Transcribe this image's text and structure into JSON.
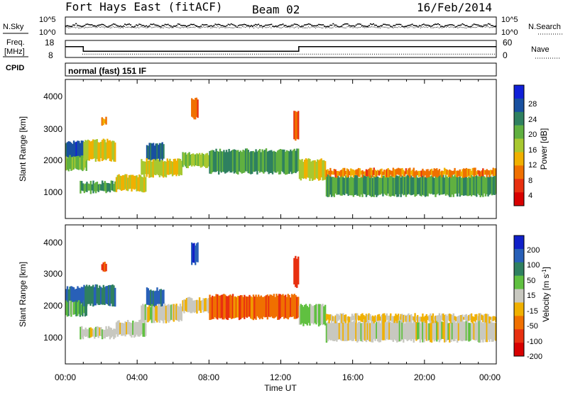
{
  "header": {
    "station": "Fort Hays East (fitACF)",
    "beam": "Beam 02",
    "date": "16/Feb/2014"
  },
  "noise_panel": {
    "left_label": "N.Sky",
    "right_label": "N.Search",
    "left_ticks": [
      "10^5",
      "10^0"
    ],
    "right_ticks": [
      "10^5",
      "10^0"
    ]
  },
  "freq_panel": {
    "left_label_line1": "Freq.",
    "left_label_line2": "[MHz]",
    "right_label": "Nave",
    "left_ticks": [
      "18",
      "8"
    ],
    "right_ticks": [
      "60",
      "0"
    ],
    "freq_segments": [
      {
        "start_h": 0.0,
        "end_h": 1.0,
        "value": 15
      },
      {
        "start_h": 1.0,
        "end_h": 13.0,
        "value": 11
      },
      {
        "start_h": 13.0,
        "end_h": 24.0,
        "value": 15
      }
    ],
    "nave_value": 13
  },
  "cpid": {
    "label": "CPID",
    "mode": "normal (fast) 151 IF"
  },
  "power_panel": {
    "ylabel": "Slant Range [km]",
    "yticks": [
      "4000",
      "3000",
      "2000",
      "1000"
    ],
    "colorbar_label": "Power [dB]",
    "colorbar_ticks": [
      "28",
      "24",
      "20",
      "16",
      "12",
      "8",
      "4"
    ],
    "colors": [
      "#1020d8",
      "#1850a0",
      "#2f8060",
      "#60b040",
      "#a8c830",
      "#f0b000",
      "#f07000",
      "#e83010",
      "#d80000"
    ]
  },
  "velocity_panel": {
    "ylabel": "Slant Range [km]",
    "yticks": [
      "4000",
      "3000",
      "2000",
      "1000"
    ],
    "colorbar_label": "Velocity [m s^-1]",
    "colorbar_ticks": [
      "200",
      "100",
      "50",
      "15",
      "-15",
      "-50",
      "-100",
      "-200"
    ],
    "colors": [
      "#1020c8",
      "#2860b8",
      "#2f8060",
      "#60c040",
      "#c8c8c0",
      "#f0b000",
      "#f07000",
      "#e83010",
      "#d80000"
    ]
  },
  "xaxis": {
    "label": "Time UT",
    "ticks": [
      "00:00",
      "04:00",
      "08:00",
      "12:00",
      "16:00",
      "20:00",
      "00:00"
    ]
  },
  "chart_data": {
    "type": "heatmap",
    "x_range_hours": [
      0,
      24
    ],
    "y_range_km": [
      180,
      4500
    ],
    "regions": [
      {
        "name": "A",
        "t0": 0.0,
        "t1": 1.0,
        "r0": 2050,
        "r1": 2550,
        "power": 26,
        "velocity": 150
      },
      {
        "name": "B",
        "t0": 0.0,
        "t1": 1.2,
        "r0": 1700,
        "r1": 2100,
        "power": 18,
        "velocity": 60
      },
      {
        "name": "C",
        "t0": 0.8,
        "t1": 2.8,
        "r0": 1000,
        "r1": 1300,
        "power": 20,
        "velocity": 0
      },
      {
        "name": "D",
        "t0": 1.0,
        "t1": 2.8,
        "r0": 2000,
        "r1": 2600,
        "power": 14,
        "velocity": 120
      },
      {
        "name": "E",
        "t0": 2.8,
        "t1": 4.5,
        "r0": 1050,
        "r1": 1500,
        "power": 12,
        "velocity": 0
      },
      {
        "name": "F",
        "t0": 4.5,
        "t1": 5.5,
        "r0": 2000,
        "r1": 2500,
        "power": 24,
        "velocity": 150
      },
      {
        "name": "G",
        "t0": 4.2,
        "t1": 6.5,
        "r0": 1500,
        "r1": 2000,
        "power": 14,
        "velocity": 0
      },
      {
        "name": "H",
        "t0": 6.5,
        "t1": 8.0,
        "r0": 1800,
        "r1": 2200,
        "power": 16,
        "velocity": -20
      },
      {
        "name": "I",
        "t0": 8.0,
        "t1": 13.0,
        "r0": 1600,
        "r1": 2300,
        "power": 20,
        "velocity": -120
      },
      {
        "name": "J",
        "t0": 13.0,
        "t1": 14.5,
        "r0": 1400,
        "r1": 2000,
        "power": 14,
        "velocity": 30
      },
      {
        "name": "K",
        "t0": 14.5,
        "t1": 24.0,
        "r0": 900,
        "r1": 1500,
        "power": 20,
        "velocity": 0
      },
      {
        "name": "L",
        "t0": 14.5,
        "t1": 24.0,
        "r0": 1500,
        "r1": 1700,
        "power": 8,
        "velocity": -30
      },
      {
        "name": "M",
        "t0": 2.0,
        "t1": 2.3,
        "r0": 3100,
        "r1": 3300,
        "power": 8,
        "velocity": -150
      },
      {
        "name": "N",
        "t0": 7.0,
        "t1": 7.4,
        "r0": 3300,
        "r1": 3900,
        "power": 6,
        "velocity": 200
      },
      {
        "name": "O",
        "t0": 12.7,
        "t1": 13.0,
        "r0": 2600,
        "r1": 3500,
        "power": 6,
        "velocity": -200
      }
    ]
  }
}
